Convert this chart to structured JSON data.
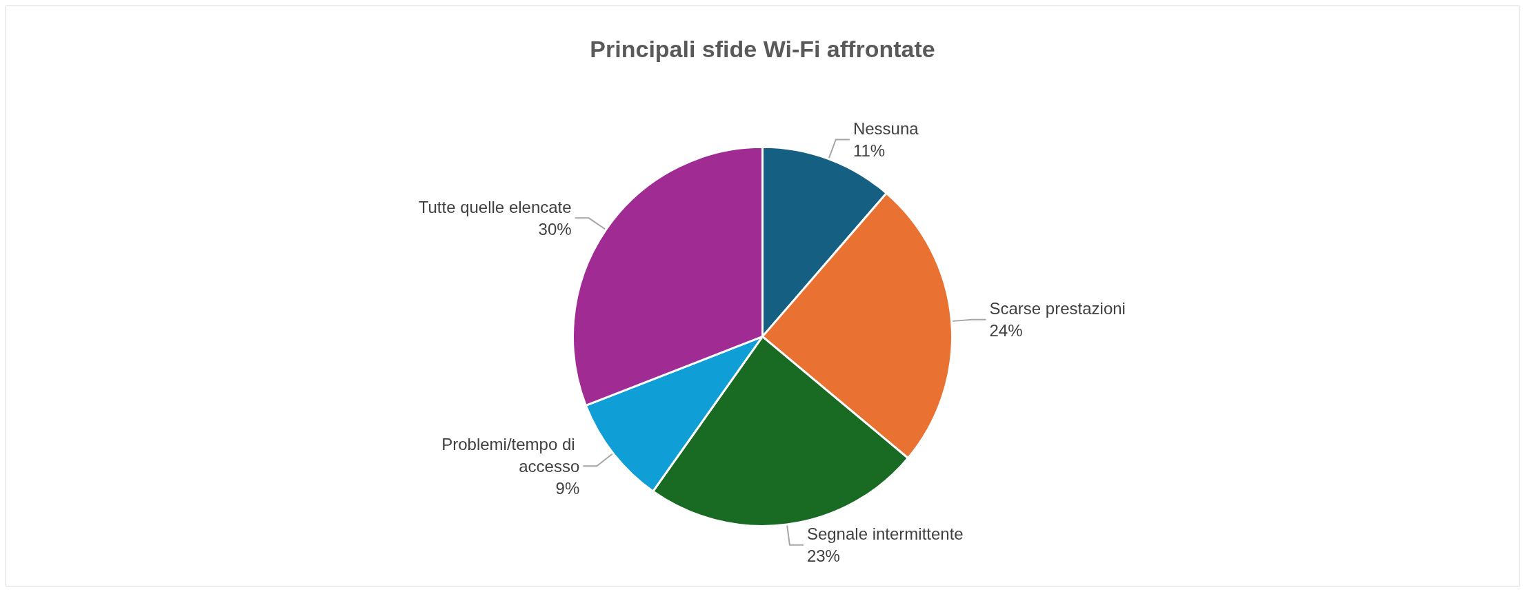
{
  "chart_data": {
    "type": "pie",
    "title": "Principali sfide Wi-Fi affrontate",
    "categories": [
      "Nessuna",
      "Scarse prestazioni",
      "Segnale intermittente",
      "Problemi/tempo di accesso",
      "Tutte quelle elencate"
    ],
    "values": [
      11,
      24,
      23,
      9,
      30
    ],
    "value_labels": [
      "11%",
      "24%",
      "23%",
      "9%",
      "30%"
    ],
    "colors": [
      "#156082",
      "#e97132",
      "#196b24",
      "#0f9ed5",
      "#a02b93"
    ],
    "legend": false
  }
}
